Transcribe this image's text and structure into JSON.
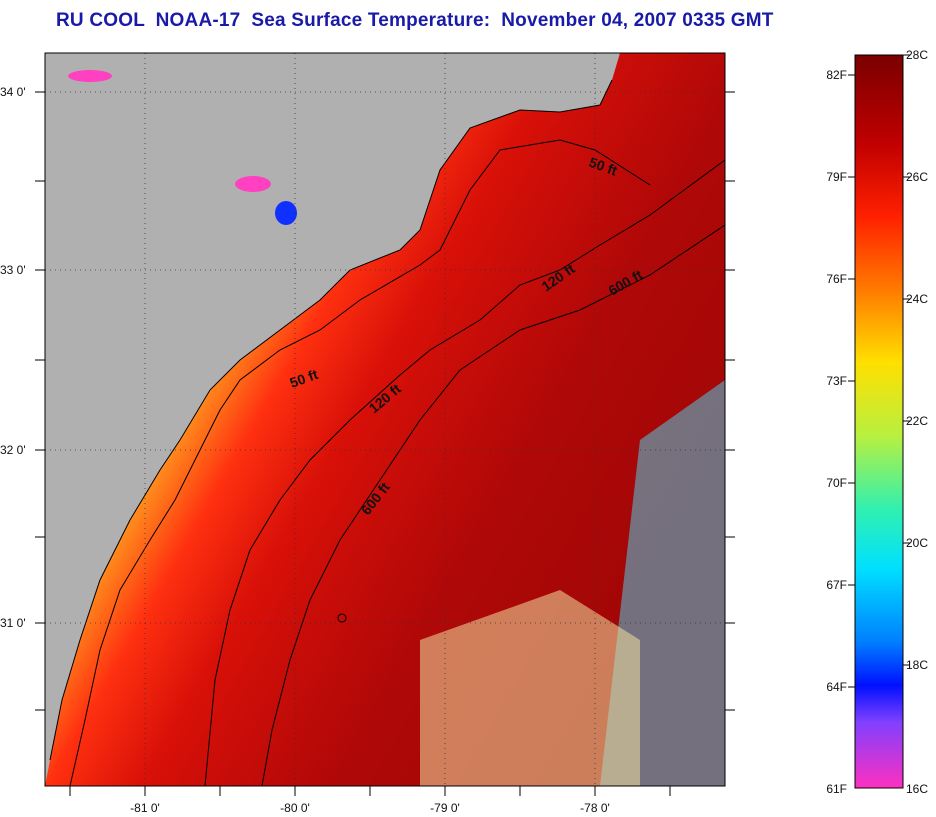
{
  "title": "RU COOL  NOAA-17  Sea Surface Temperature:  November 04, 2007 0335 GMT",
  "map": {
    "lat_labels": [
      "34 0'",
      "33 0'",
      "32 0'",
      "31 0'"
    ],
    "lon_labels": [
      "-81 0'",
      "-80 0'",
      "-79 0'",
      "-78 0'"
    ],
    "contours": [
      {
        "depth": "50 ft",
        "labels": [
          "50 ft",
          "50 ft"
        ]
      },
      {
        "depth": "120 ft",
        "labels": [
          "120 ft",
          "120 ft"
        ]
      },
      {
        "depth": "600 ft",
        "labels": [
          "600 ft",
          "600 ft"
        ]
      }
    ],
    "colors": {
      "land": "#b0b0b0",
      "frame": "#000000",
      "title": "#1a1aa8"
    }
  },
  "colorbar": {
    "fahrenheit_labels": [
      "82F",
      "79F",
      "76F",
      "73F",
      "70F",
      "67F",
      "64F",
      "61F"
    ],
    "celsius_labels": [
      "28C",
      "26C",
      "24C",
      "22C",
      "20C",
      "18C",
      "16C"
    ],
    "range_c": [
      16,
      28
    ]
  }
}
